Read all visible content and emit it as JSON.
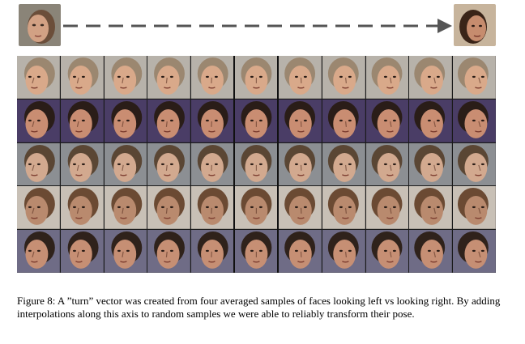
{
  "figure": {
    "top_faces": [
      {
        "name": "start-face-looking-left",
        "direction": "left"
      },
      {
        "name": "end-face-looking-right",
        "direction": "right"
      }
    ],
    "arrow": {
      "style": "dashed",
      "color": "#555555"
    },
    "grid": {
      "rows": 5,
      "cols": 11,
      "row_palettes": [
        {
          "bg": "#b7b2aa",
          "skin": "#d9a98a",
          "hair": "#9b8770"
        },
        {
          "bg": "#4a3d66",
          "skin": "#c98d72",
          "hair": "#2a1d18"
        },
        {
          "bg": "#8c8f93",
          "skin": "#d2a98f",
          "hair": "#5a4634"
        },
        {
          "bg": "#c8c0b6",
          "skin": "#b98a6e",
          "hair": "#6b4a33"
        },
        {
          "bg": "#6f6c86",
          "skin": "#c68f74",
          "hair": "#2f221b"
        }
      ]
    }
  },
  "caption": {
    "text": "Figure 8: A ”turn” vector was created from four averaged samples of faces looking left vs looking right. By adding interpolations along this axis to random samples we were able to reliably transform their pose."
  }
}
